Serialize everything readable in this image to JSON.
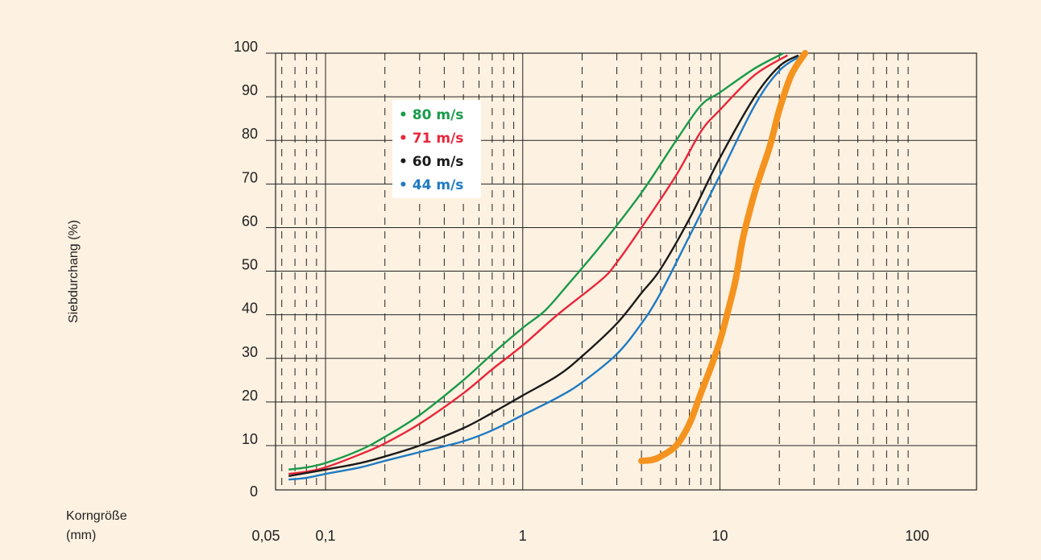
{
  "chart_data": {
    "type": "line",
    "xscale": "log",
    "xlim": [
      0.0558,
      200
    ],
    "ylim": [
      0,
      100
    ],
    "ylabel": "Siebdurchang (%)",
    "xlabel_line1": "Korngröße",
    "xlabel_line2": "(mm)",
    "xticks": [
      {
        "value": 0.05,
        "label": "0,05"
      },
      {
        "value": 0.1,
        "label": "0,1"
      },
      {
        "value": 1,
        "label": "1"
      },
      {
        "value": 10,
        "label": "10"
      },
      {
        "value": 100,
        "label": "100"
      }
    ],
    "yticks": [
      {
        "value": 0,
        "label": "0"
      },
      {
        "value": 10,
        "label": "10"
      },
      {
        "value": 20,
        "label": "20"
      },
      {
        "value": 30,
        "label": "30"
      },
      {
        "value": 40,
        "label": "40"
      },
      {
        "value": 50,
        "label": "50"
      },
      {
        "value": 60,
        "label": "60"
      },
      {
        "value": 70,
        "label": "70"
      },
      {
        "value": 80,
        "label": "80"
      },
      {
        "value": 90,
        "label": "90"
      },
      {
        "value": 100,
        "label": "100"
      }
    ],
    "grid": true,
    "legend_position": "top-left",
    "series": [
      {
        "name": "80 m/s",
        "color": "#1a9a4a",
        "points": [
          [
            0.065,
            4.5
          ],
          [
            0.08,
            5.0
          ],
          [
            0.1,
            6.0
          ],
          [
            0.15,
            9.0
          ],
          [
            0.2,
            12.0
          ],
          [
            0.3,
            17.0
          ],
          [
            0.5,
            25.0
          ],
          [
            0.7,
            31.0
          ],
          [
            1.0,
            37.0
          ],
          [
            1.3,
            41.0
          ],
          [
            1.7,
            47.0
          ],
          [
            2.5,
            56.0
          ],
          [
            4.0,
            68.0
          ],
          [
            6.0,
            80.0
          ],
          [
            8.0,
            88.0
          ],
          [
            10.0,
            91.0
          ],
          [
            15.0,
            96.5
          ],
          [
            21.0,
            100.0
          ]
        ]
      },
      {
        "name": "71 m/s",
        "color": "#e8263a",
        "points": [
          [
            0.065,
            3.5
          ],
          [
            0.08,
            4.0
          ],
          [
            0.1,
            5.0
          ],
          [
            0.15,
            8.0
          ],
          [
            0.2,
            10.5
          ],
          [
            0.3,
            15.0
          ],
          [
            0.5,
            22.0
          ],
          [
            0.7,
            27.5
          ],
          [
            1.0,
            33.0
          ],
          [
            1.5,
            40.0
          ],
          [
            2.5,
            48.0
          ],
          [
            3.0,
            52.0
          ],
          [
            4.0,
            60.0
          ],
          [
            6.0,
            72.0
          ],
          [
            8.0,
            82.0
          ],
          [
            10.0,
            87.0
          ],
          [
            15.0,
            95.0
          ],
          [
            22.0,
            99.5
          ]
        ]
      },
      {
        "name": "60 m/s",
        "color": "#1a1a1a",
        "points": [
          [
            0.065,
            3.0
          ],
          [
            0.1,
            4.5
          ],
          [
            0.15,
            6.0
          ],
          [
            0.2,
            7.5
          ],
          [
            0.3,
            10.0
          ],
          [
            0.5,
            14.0
          ],
          [
            0.7,
            17.5
          ],
          [
            1.0,
            21.5
          ],
          [
            1.5,
            26.0
          ],
          [
            2.0,
            30.5
          ],
          [
            3.0,
            38.0
          ],
          [
            4.0,
            45.0
          ],
          [
            5.0,
            50.5
          ],
          [
            7.0,
            62.0
          ],
          [
            10.0,
            76.0
          ],
          [
            15.0,
            90.0
          ],
          [
            20.0,
            97.0
          ],
          [
            25.0,
            99.5
          ]
        ]
      },
      {
        "name": "44 m/s",
        "color": "#1f7bc3",
        "points": [
          [
            0.065,
            2.2
          ],
          [
            0.08,
            2.6
          ],
          [
            0.1,
            3.5
          ],
          [
            0.15,
            5.0
          ],
          [
            0.2,
            6.5
          ],
          [
            0.3,
            8.5
          ],
          [
            0.5,
            11.0
          ],
          [
            0.7,
            13.5
          ],
          [
            1.0,
            17.0
          ],
          [
            1.5,
            21.0
          ],
          [
            2.0,
            24.5
          ],
          [
            3.0,
            31.0
          ],
          [
            4.0,
            38.0
          ],
          [
            5.0,
            45.0
          ],
          [
            7.0,
            58.0
          ],
          [
            10.0,
            72.0
          ],
          [
            15.0,
            88.0
          ],
          [
            20.0,
            96.0
          ],
          [
            26.0,
            99.5
          ]
        ]
      }
    ],
    "annotation_curve": {
      "color": "#f4931e",
      "points": [
        [
          4.0,
          6.5
        ],
        [
          4.5,
          6.7
        ],
        [
          5.0,
          7.5
        ],
        [
          6.0,
          10.0
        ],
        [
          7.0,
          15.0
        ],
        [
          8.0,
          22.0
        ],
        [
          9.0,
          28.0
        ],
        [
          10.0,
          34.0
        ],
        [
          11.0,
          41.0
        ],
        [
          12.0,
          48.0
        ],
        [
          13.0,
          57.0
        ],
        [
          14.0,
          63.0
        ],
        [
          15.0,
          68.0
        ],
        [
          16.0,
          72.0
        ],
        [
          18.0,
          79.0
        ],
        [
          20.0,
          87.0
        ],
        [
          23.0,
          95.0
        ],
        [
          27.0,
          100.0
        ]
      ]
    }
  }
}
